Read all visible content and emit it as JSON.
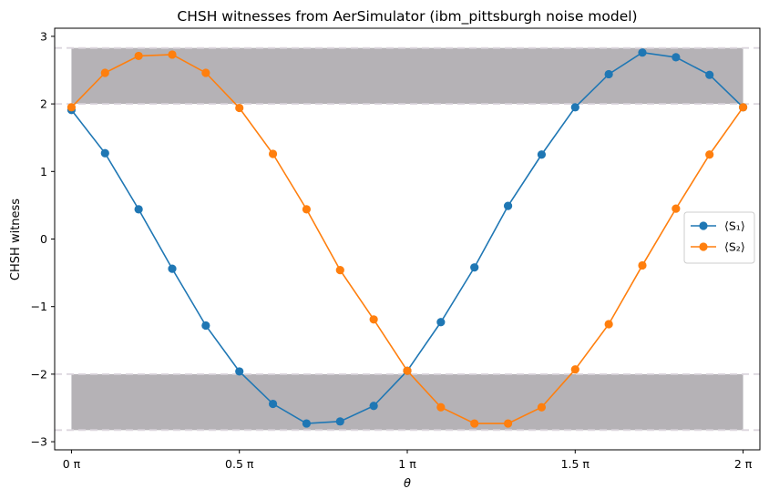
{
  "chart_data": {
    "type": "line",
    "title": "CHSH witnesses from AerSimulator (ibm_pittsburgh noise model)",
    "xlabel": "θ",
    "ylabel": "CHSH witness",
    "xlim": [
      -0.05,
      2.05
    ],
    "ylim": [
      -3.12,
      3.12
    ],
    "x_ticks": [
      {
        "value": 0,
        "label": "0 π"
      },
      {
        "value": 0.5,
        "label": "0.5 π"
      },
      {
        "value": 1,
        "label": "1 π"
      },
      {
        "value": 1.5,
        "label": "1.5 π"
      },
      {
        "value": 2,
        "label": "2 π"
      }
    ],
    "y_ticks": [
      {
        "value": 3,
        "label": "3"
      },
      {
        "value": 2,
        "label": "2"
      },
      {
        "value": 1,
        "label": "1"
      },
      {
        "value": 0,
        "label": "0"
      },
      {
        "value": -1,
        "label": "−1"
      },
      {
        "value": -2,
        "label": "−2"
      },
      {
        "value": -3,
        "label": "−3"
      }
    ],
    "x": [
      0,
      0.1,
      0.2,
      0.3,
      0.4,
      0.5,
      0.6,
      0.7,
      0.8,
      0.9,
      1.0,
      1.1,
      1.2,
      1.3,
      1.4,
      1.5,
      1.6,
      1.7,
      1.8,
      1.9,
      2.0
    ],
    "series": [
      {
        "name": "⟨S₁⟩",
        "color": "#1f77b4",
        "values": [
          1.91,
          1.27,
          0.44,
          -0.44,
          -1.28,
          -1.96,
          -2.44,
          -2.73,
          -2.7,
          -2.47,
          -1.95,
          -1.23,
          -0.42,
          0.49,
          1.25,
          1.95,
          2.44,
          2.76,
          2.69,
          2.43,
          1.95
        ]
      },
      {
        "name": "⟨S₂⟩",
        "color": "#ff7f0e",
        "values": [
          1.95,
          2.46,
          2.71,
          2.73,
          2.46,
          1.94,
          1.26,
          0.44,
          -0.46,
          -1.19,
          -1.95,
          -2.49,
          -2.73,
          -2.73,
          -2.49,
          -1.93,
          -1.26,
          -0.39,
          0.45,
          1.25,
          1.95
        ]
      }
    ],
    "bands": [
      {
        "y0": 2.0,
        "y1": 2.828,
        "x0": 0,
        "x1": 2,
        "color": "#b5b2b6"
      },
      {
        "y0": -2.828,
        "y1": -2.0,
        "x0": 0,
        "x1": 2,
        "color": "#b5b2b6"
      }
    ],
    "reference_lines": [
      2.828,
      2.0,
      -2.0,
      -2.828
    ],
    "grid": false,
    "legend_position": "right"
  }
}
